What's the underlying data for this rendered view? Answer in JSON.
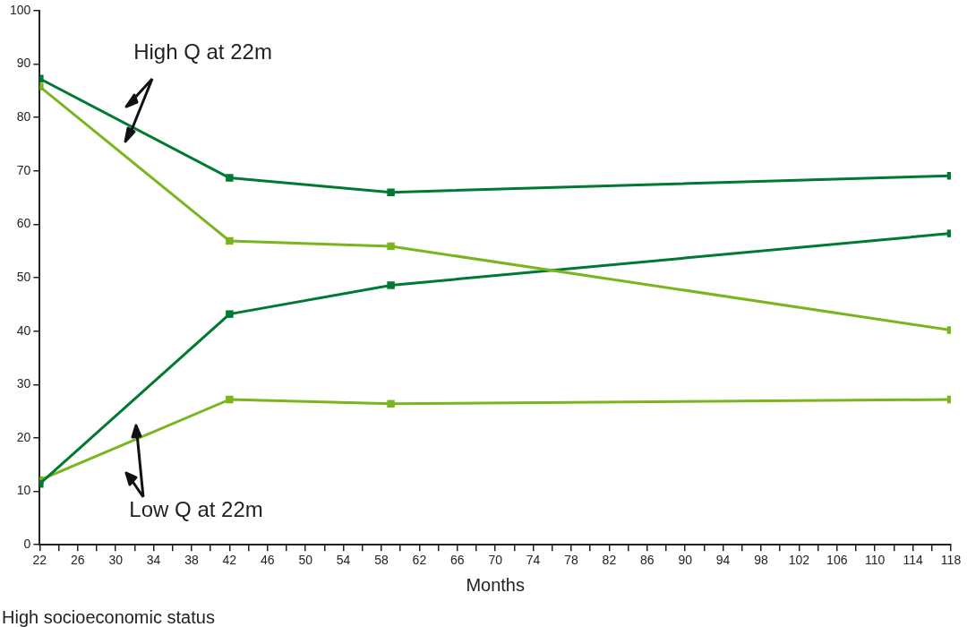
{
  "chart_data": {
    "type": "line",
    "xlabel": "Months",
    "annotations": [
      {
        "text": "High Q at 22m",
        "x": 30,
        "y": 80
      },
      {
        "text": "Low Q at 22m",
        "x": 32,
        "y": 19.7
      },
      "High socioeconomic status"
    ],
    "series": [
      {
        "color": "#007a33",
        "x": [
          22,
          42,
          59,
          118
        ],
        "values": [
          87.3,
          68.7,
          66.0,
          69.1
        ]
      },
      {
        "color": "#7ab51d",
        "x": [
          22,
          42,
          59,
          118
        ],
        "values": [
          85.8,
          56.9,
          55.9,
          40.2
        ]
      },
      {
        "color": "#007a33",
        "x": [
          22,
          42,
          59,
          118
        ],
        "values": [
          11.4,
          43.2,
          48.6,
          58.3
        ]
      },
      {
        "color": "#7ab51d",
        "x": [
          22,
          42,
          59,
          118
        ],
        "values": [
          12.1,
          27.2,
          26.4,
          27.2
        ]
      }
    ],
    "xlim": [
      22,
      118
    ],
    "xticks": [
      22,
      {
        "value": 24,
        "label": null
      },
      26,
      {
        "value": 28,
        "label": null
      },
      30,
      {
        "value": 32,
        "label": null
      },
      34,
      {
        "value": 36,
        "label": null
      },
      38,
      {
        "value": 40,
        "label": null
      },
      42,
      {
        "value": 44,
        "label": null
      },
      46,
      {
        "value": 48,
        "label": null
      },
      50,
      {
        "value": 52,
        "label": null
      },
      54,
      {
        "value": 56,
        "label": null
      },
      58,
      {
        "value": 60,
        "label": null
      },
      62,
      {
        "value": 64,
        "label": null
      },
      66,
      {
        "value": 68,
        "label": null
      },
      70,
      {
        "value": 72,
        "label": null
      },
      74,
      {
        "value": 76,
        "label": null
      },
      78,
      {
        "value": 80,
        "label": null
      },
      82,
      {
        "value": 84,
        "label": null
      },
      86,
      {
        "value": 88,
        "label": null
      },
      90,
      {
        "value": 92,
        "label": null
      },
      94,
      {
        "value": 96,
        "label": null
      },
      98,
      {
        "value": 100,
        "label": null
      },
      102,
      {
        "value": 104,
        "label": null
      },
      106,
      {
        "value": 108,
        "label": null
      },
      110,
      {
        "value": 112,
        "label": null
      },
      114,
      {
        "value": 116,
        "label": null
      },
      118
    ],
    "ylim": [
      0,
      100
    ],
    "yticks": [
      0,
      10,
      20,
      30,
      40,
      50,
      60,
      70,
      80,
      90,
      100
    ],
    "grid": false,
    "legend": false,
    "marker": "square",
    "line_style": "solid"
  }
}
